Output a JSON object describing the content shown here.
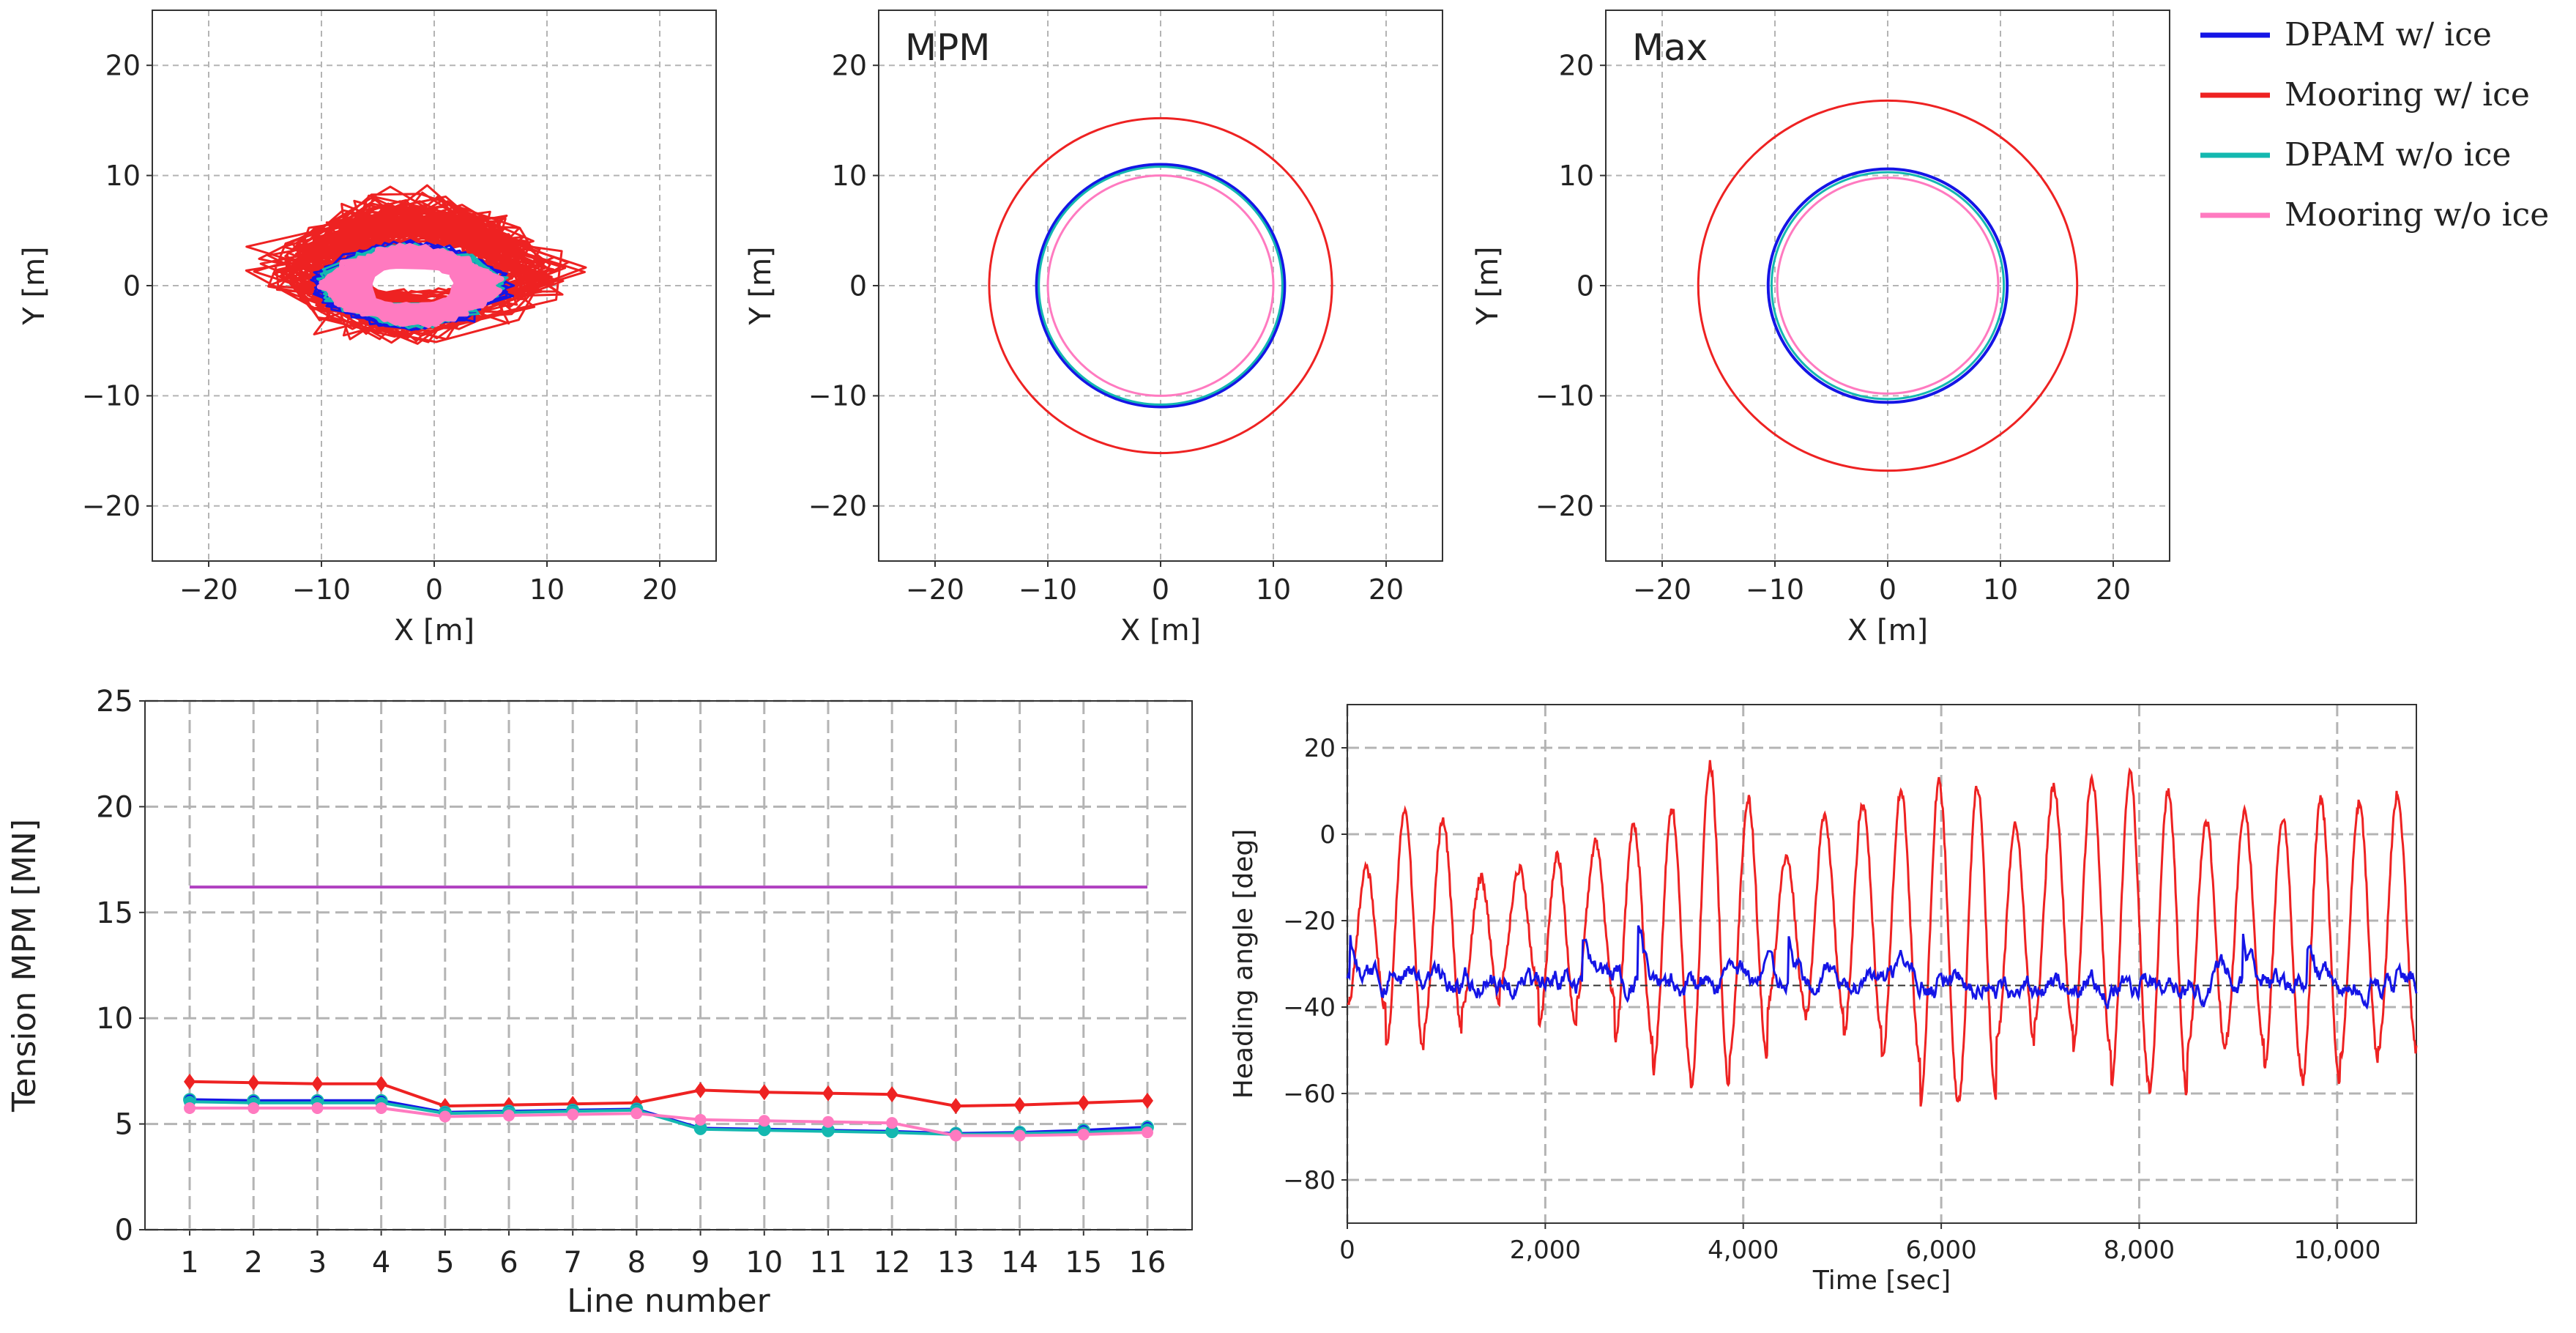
{
  "colors": {
    "dpam_ice": "#1515e6",
    "mooring_ice": "#ee2222",
    "dpam_noice": "#14b8b0",
    "mooring_noice": "#ff7ac0",
    "limit": "#b040c0",
    "grid": "#b4b4b4",
    "mean_line": "#333333"
  },
  "legend": {
    "entries": [
      {
        "label": "DPAM w/ ice",
        "color_key": "dpam_ice"
      },
      {
        "label": "Mooring w/ ice",
        "color_key": "mooring_ice"
      },
      {
        "label": "DPAM w/o ice",
        "color_key": "dpam_noice"
      },
      {
        "label": "Mooring w/o ice",
        "color_key": "mooring_noice"
      }
    ]
  },
  "chart_data": [
    {
      "id": "trajectory",
      "type": "line",
      "title": "",
      "xlabel": "X [m]",
      "ylabel": "Y [m]",
      "xlim": [
        -25,
        25
      ],
      "ylim": [
        -25,
        25
      ],
      "xticks": [
        -20,
        -10,
        0,
        10,
        20
      ],
      "yticks": [
        -20,
        -10,
        0,
        10,
        20
      ],
      "xtick_labels": [
        "−20",
        "−10",
        "0",
        "10",
        "20"
      ],
      "ytick_labels": [
        "−20",
        "−10",
        "0",
        "10",
        "20"
      ],
      "grid": true,
      "series": [
        {
          "name": "Mooring w/ ice",
          "color_key": "mooring_ice",
          "center": [
            -2,
            1.5
          ],
          "radius_x": [
            7,
            16
          ],
          "radius_y": [
            3,
            8
          ]
        },
        {
          "name": "DPAM w/ ice",
          "color_key": "dpam_ice",
          "center": [
            -2,
            0
          ],
          "radius_x": [
            8,
            9.5
          ],
          "radius_y": [
            3.5,
            4.2
          ]
        },
        {
          "name": "DPAM w/o ice",
          "color_key": "dpam_noice",
          "center": [
            -2,
            0
          ],
          "radius_x": [
            7,
            9
          ],
          "radius_y": [
            3,
            4
          ]
        },
        {
          "name": "Mooring w/o ice",
          "color_key": "mooring_noice",
          "center": [
            -2,
            0
          ],
          "radius_x": [
            6.5,
            8.5
          ],
          "radius_y": [
            3,
            3.8
          ]
        }
      ]
    },
    {
      "id": "mpm",
      "type": "line",
      "title": "MPM",
      "xlabel": "X [m]",
      "ylabel": "Y [m]",
      "xlim": [
        -25,
        25
      ],
      "ylim": [
        -25,
        25
      ],
      "xticks": [
        -20,
        -10,
        0,
        10,
        20
      ],
      "yticks": [
        -20,
        -10,
        0,
        10,
        20
      ],
      "xtick_labels": [
        "−20",
        "−10",
        "0",
        "10",
        "20"
      ],
      "ytick_labels": [
        "−20",
        "−10",
        "0",
        "10",
        "20"
      ],
      "grid": true,
      "circles": [
        {
          "name": "Mooring w/ ice",
          "color_key": "mooring_ice",
          "radius": 15.2
        },
        {
          "name": "DPAM w/ ice",
          "color_key": "dpam_ice",
          "radius": 11.0
        },
        {
          "name": "DPAM w/o ice",
          "color_key": "dpam_noice",
          "radius": 10.8
        },
        {
          "name": "Mooring w/o ice",
          "color_key": "mooring_noice",
          "radius": 10.0
        }
      ]
    },
    {
      "id": "max",
      "type": "line",
      "title": "Max",
      "xlabel": "X [m]",
      "ylabel": "Y [m]",
      "xlim": [
        -25,
        25
      ],
      "ylim": [
        -25,
        25
      ],
      "xticks": [
        -20,
        -10,
        0,
        10,
        20
      ],
      "yticks": [
        -20,
        -10,
        0,
        10,
        20
      ],
      "xtick_labels": [
        "−20",
        "−10",
        "0",
        "10",
        "20"
      ],
      "ytick_labels": [
        "−20",
        "−10",
        "0",
        "10",
        "20"
      ],
      "grid": true,
      "circles": [
        {
          "name": "Mooring w/ ice",
          "color_key": "mooring_ice",
          "radius": 16.8
        },
        {
          "name": "DPAM w/ ice",
          "color_key": "dpam_ice",
          "radius": 10.6
        },
        {
          "name": "DPAM w/o ice",
          "color_key": "dpam_noice",
          "radius": 10.3
        },
        {
          "name": "Mooring w/o ice",
          "color_key": "mooring_noice",
          "radius": 9.8
        }
      ]
    },
    {
      "id": "tension",
      "type": "line",
      "title": "",
      "xlabel": "Line number",
      "ylabel": "Tension MPM [MN]",
      "xlim": [
        0.3,
        16.7
      ],
      "ylim": [
        0,
        25
      ],
      "categories": [
        1,
        2,
        3,
        4,
        5,
        6,
        7,
        8,
        9,
        10,
        11,
        12,
        13,
        14,
        15,
        16
      ],
      "yticks": [
        0,
        5,
        10,
        15,
        20,
        25
      ],
      "ytick_labels": [
        "0",
        "5",
        "10",
        "15",
        "20",
        "25"
      ],
      "grid": true,
      "limit_line": {
        "value": 16.2,
        "color_key": "limit"
      },
      "series": [
        {
          "name": "Mooring w/ ice",
          "color_key": "mooring_ice",
          "values": [
            7.0,
            6.95,
            6.9,
            6.9,
            5.85,
            5.9,
            5.95,
            6.0,
            6.6,
            6.5,
            6.45,
            6.4,
            5.85,
            5.9,
            6.0,
            6.1
          ]
        },
        {
          "name": "DPAM w/ ice",
          "color_key": "dpam_ice",
          "values": [
            6.15,
            6.1,
            6.1,
            6.1,
            5.55,
            5.6,
            5.65,
            5.7,
            4.8,
            4.75,
            4.7,
            4.65,
            4.55,
            4.6,
            4.7,
            4.85
          ]
        },
        {
          "name": "DPAM w/o ice",
          "color_key": "dpam_noice",
          "values": [
            6.05,
            6.0,
            6.0,
            6.0,
            5.5,
            5.55,
            5.6,
            5.65,
            4.75,
            4.7,
            4.65,
            4.6,
            4.5,
            4.55,
            4.6,
            4.75
          ]
        },
        {
          "name": "Mooring w/o ice",
          "color_key": "mooring_noice",
          "values": [
            5.75,
            5.75,
            5.75,
            5.75,
            5.35,
            5.4,
            5.45,
            5.5,
            5.2,
            5.15,
            5.1,
            5.05,
            4.45,
            4.45,
            4.5,
            4.6
          ]
        }
      ]
    },
    {
      "id": "heading",
      "type": "line",
      "title": "",
      "xlabel": "Time [sec]",
      "ylabel": "Heading angle [deg]",
      "xlim": [
        0,
        10800
      ],
      "ylim": [
        -90,
        30
      ],
      "xticks": [
        0,
        2000,
        4000,
        6000,
        8000,
        10000
      ],
      "xtick_labels": [
        "0",
        "2,000",
        "4,000",
        "6,000",
        "8,000",
        "10,000"
      ],
      "yticks": [
        -80,
        -60,
        -40,
        -20,
        0,
        20
      ],
      "ytick_labels": [
        "−80",
        "−60",
        "−40",
        "−20",
        "0",
        "20"
      ],
      "grid": true,
      "mean_line": {
        "value": -35,
        "color_key": "mean_line"
      },
      "series": [
        {
          "name": "Mooring w/ ice",
          "color_key": "mooring_ice",
          "mean": -20,
          "period": 450,
          "peaks": [
            -8,
            5,
            3,
            -10,
            -8,
            -5,
            -2,
            2,
            6,
            16,
            8,
            -5,
            4,
            7,
            10,
            12,
            11,
            2,
            11,
            13,
            14,
            10,
            3,
            5,
            4,
            8,
            7,
            9
          ],
          "troughs": [
            -40,
            -50,
            -45,
            -40,
            -35,
            -45,
            -38,
            -48,
            -55,
            -58,
            -52,
            -40,
            -42,
            -46,
            -52,
            -62,
            -62,
            -48,
            -44,
            -50,
            -58,
            -60,
            -50,
            -48,
            -55,
            -58,
            -52,
            -50
          ]
        },
        {
          "name": "DPAM w/ ice",
          "color_key": "dpam_ice",
          "mean": -34,
          "noise": 4
        }
      ]
    }
  ]
}
